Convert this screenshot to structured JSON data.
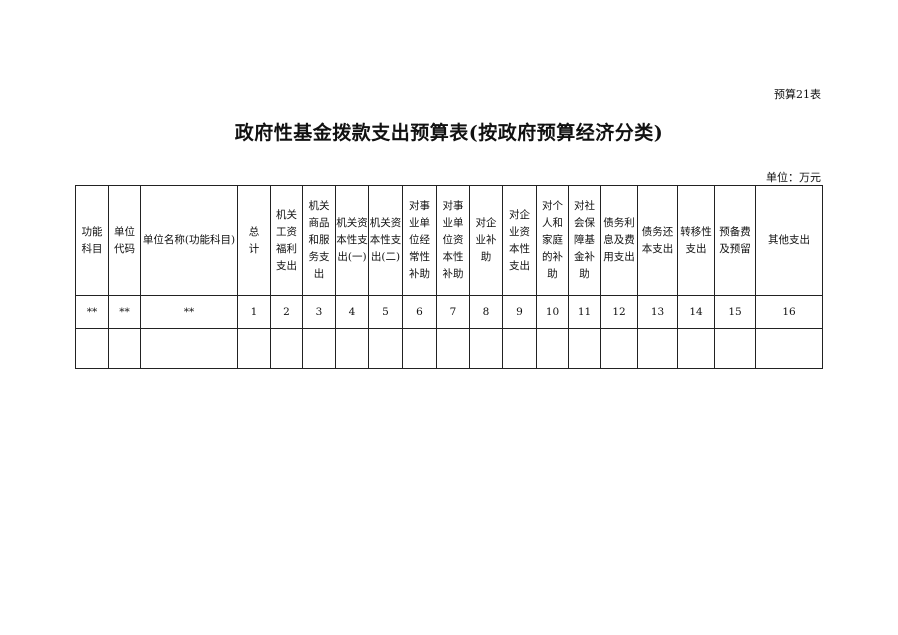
{
  "table_number": "预算21表",
  "title": "政府性基金拨款支出预算表(按政府预算经济分类)",
  "unit": "单位：万元",
  "columns": [
    {
      "header": "功能\n科目",
      "code": "**"
    },
    {
      "header": "单位\n代码",
      "code": "**"
    },
    {
      "header": "单位名称(功能科目)",
      "code": "**"
    },
    {
      "header": "总\n计",
      "code": "1"
    },
    {
      "header": "机关\n工资\n福利\n支出",
      "code": "2"
    },
    {
      "header": "机关\n商品\n和服\n务支\n出",
      "code": "3"
    },
    {
      "header": "机关资\n本性支\n出(一)",
      "code": "4"
    },
    {
      "header": "机关资\n本性支\n出(二)",
      "code": "5"
    },
    {
      "header": "对事\n业单\n位经\n常性\n补助",
      "code": "6"
    },
    {
      "header": "对事\n业单\n位资\n本性\n补助",
      "code": "7"
    },
    {
      "header": "对企\n业补\n助",
      "code": "8"
    },
    {
      "header": "对企\n业资\n本性\n支出",
      "code": "9"
    },
    {
      "header": "对个\n人和\n家庭\n的补\n助",
      "code": "10"
    },
    {
      "header": "对社\n会保\n障基\n金补\n助",
      "code": "11"
    },
    {
      "header": "债务利\n息及费\n用支出",
      "code": "12"
    },
    {
      "header": "债务还\n本支出",
      "code": "13"
    },
    {
      "header": "转移性\n支出",
      "code": "14"
    },
    {
      "header": "预备费\n及预留",
      "code": "15"
    },
    {
      "header": "其他支出",
      "code": "16"
    }
  ]
}
